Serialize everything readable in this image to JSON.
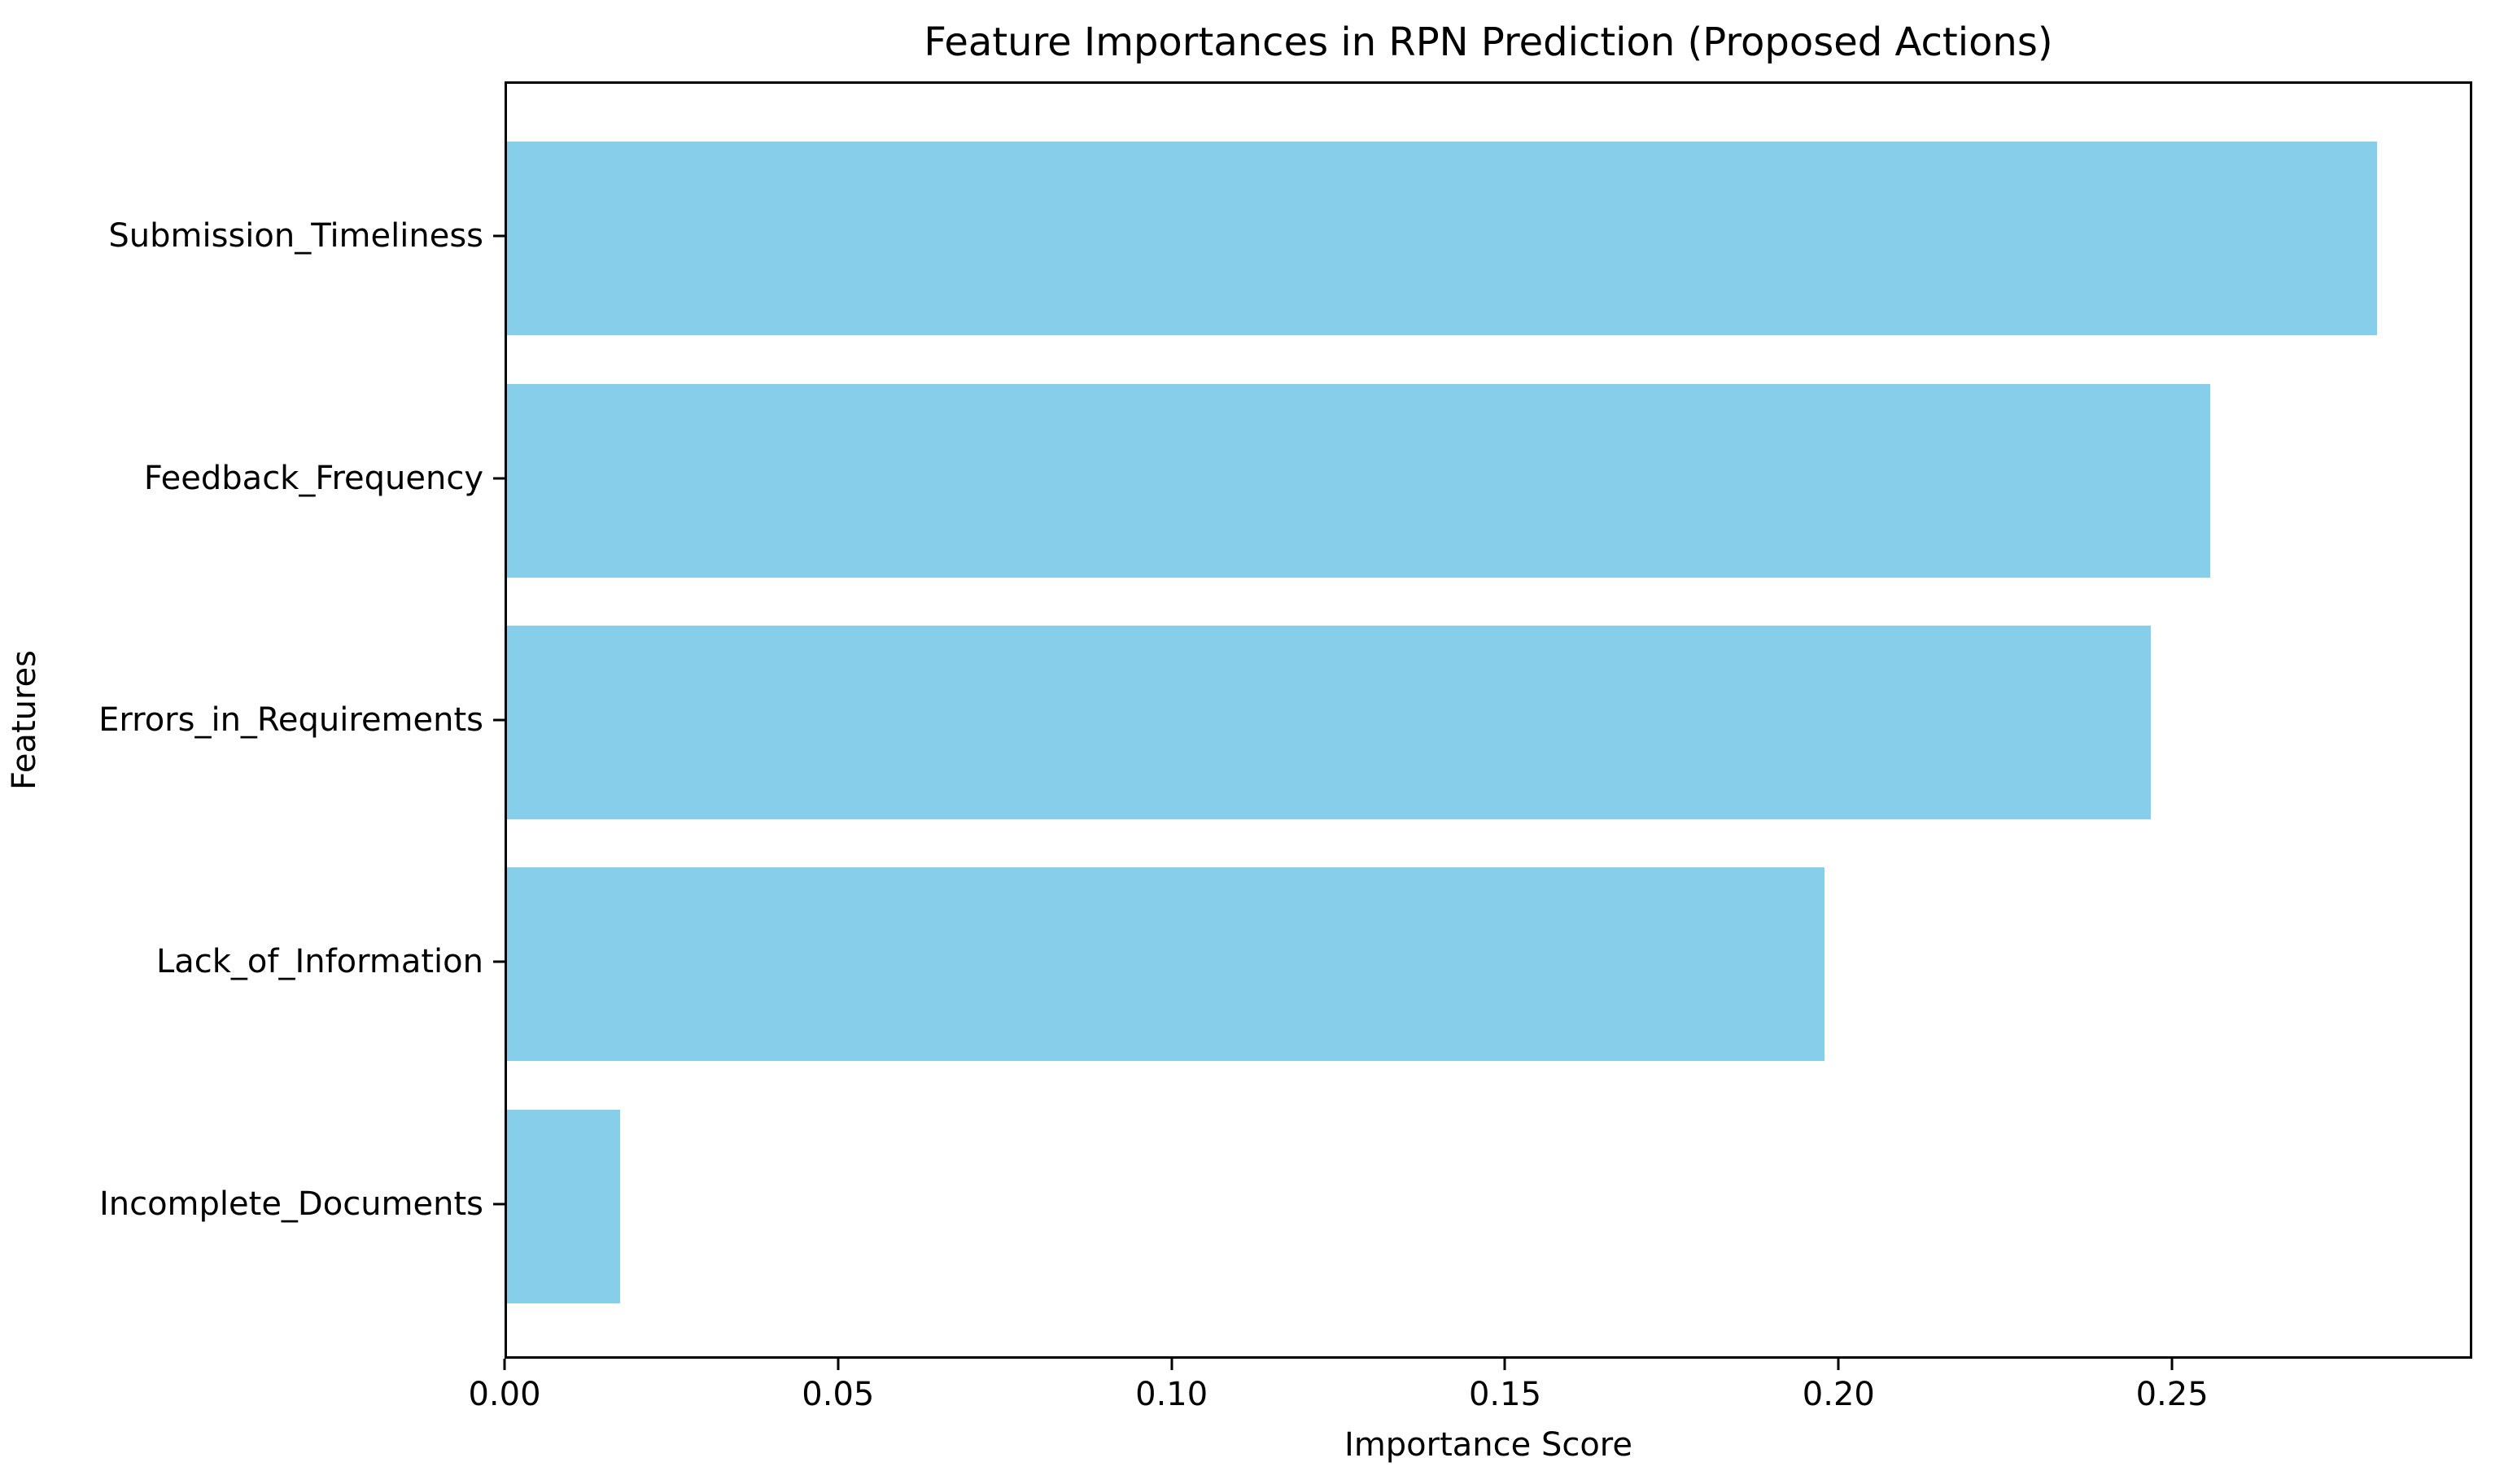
{
  "chart_data": {
    "type": "bar",
    "orientation": "horizontal",
    "title": "Feature Importances in RPN Prediction (Proposed Actions)",
    "xlabel": "Importance Score",
    "ylabel": "Features",
    "categories": [
      "Submission_Timeliness",
      "Feedback_Frequency",
      "Errors_in_Requirements",
      "Lack_of_Information",
      "Incomplete_Documents"
    ],
    "values": [
      0.281,
      0.256,
      0.247,
      0.198,
      0.017
    ],
    "xlim": [
      0,
      0.295
    ],
    "xticks": [
      0.0,
      0.05,
      0.1,
      0.15,
      0.2,
      0.25
    ],
    "xtick_labels": [
      "0.00",
      "0.05",
      "0.10",
      "0.15",
      "0.20",
      "0.25"
    ],
    "bar_color": "#87CEEB",
    "grid": false,
    "legend": null
  },
  "colors": {
    "bar_fill": "#87CEEB",
    "spine": "#000000",
    "text": "#000000",
    "background": "#FFFFFF"
  }
}
